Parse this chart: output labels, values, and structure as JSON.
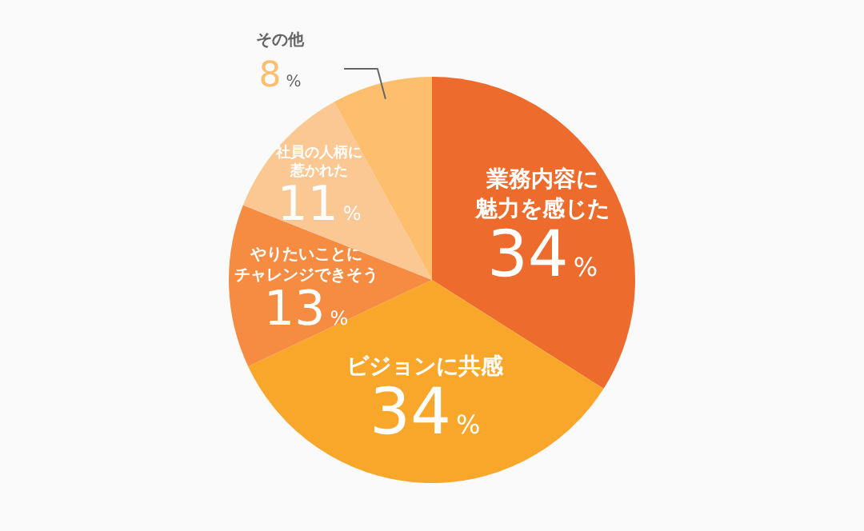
{
  "chart_data": {
    "type": "pie",
    "categories": [
      "業務内容に魅力を感じた",
      "ビジョンに共感",
      "やりたいことにチャレンジできそう",
      "社員の人柄に惹かれた",
      "その他"
    ],
    "values": [
      34,
      34,
      13,
      11,
      8
    ],
    "value_labels": [
      "34%",
      "34%",
      "13%",
      "11%",
      "8%"
    ],
    "colors": [
      "#ed6c2d",
      "#f8a72a",
      "#f68c42",
      "#fbc792",
      "#fdbf6e"
    ]
  }
}
